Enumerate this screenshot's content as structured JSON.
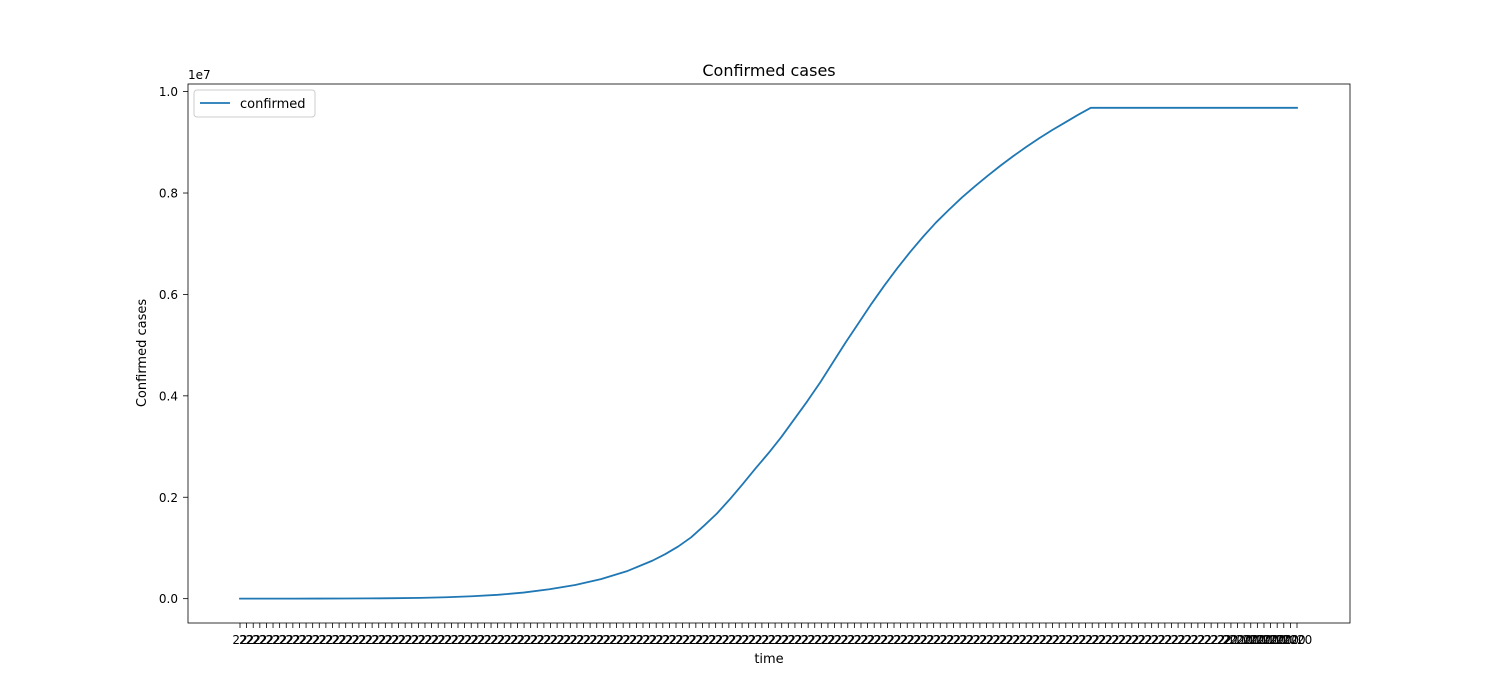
{
  "chart_data": {
    "type": "line",
    "title": "Confirmed cases",
    "xlabel": "time",
    "ylabel": "Confirmed cases",
    "y_offset_label": "1e7",
    "ylim": [
      -480000,
      10150000
    ],
    "y_ticks": [
      0,
      2000000,
      4000000,
      6000000,
      8000000,
      10000000
    ],
    "y_tick_labels": [
      "0.0",
      "0.2",
      "0.4",
      "0.6",
      "0.8",
      "1.0"
    ],
    "x_ticks_overplotted": true,
    "x_tick_label_sample": "22",
    "x_tick_label_last": "2020",
    "grid": false,
    "legend_position": "upper-left",
    "series": [
      {
        "name": "confirmed",
        "color": "#1f77b4",
        "x": [
          0,
          10,
          20,
          30,
          40,
          50,
          60,
          70,
          80,
          90,
          100,
          110,
          120,
          130,
          140,
          150,
          160,
          165,
          170,
          175,
          180,
          185,
          190,
          195,
          200,
          205,
          210,
          215,
          220,
          225,
          230,
          235,
          240,
          245,
          250,
          255,
          260,
          265,
          270,
          275,
          280,
          285,
          290,
          295,
          300,
          305,
          310,
          315,
          320,
          325,
          330,
          335,
          340,
          345,
          350,
          355,
          360,
          365,
          370,
          375,
          380,
          385,
          390,
          395,
          400,
          405,
          410
        ],
        "values": [
          555,
          900,
          1500,
          2300,
          3500,
          5500,
          9000,
          16000,
          28000,
          47000,
          76000,
          120000,
          185000,
          270000,
          385000,
          540000,
          750000,
          880000,
          1030000,
          1210000,
          1440000,
          1680000,
          1960000,
          2260000,
          2570000,
          2870000,
          3190000,
          3540000,
          3890000,
          4260000,
          4660000,
          5060000,
          5440000,
          5820000,
          6180000,
          6520000,
          6840000,
          7140000,
          7420000,
          7670000,
          7910000,
          8130000,
          8340000,
          8540000,
          8730000,
          8910000,
          9080000,
          9240000,
          9390000,
          9540000,
          9680000,
          9680000,
          9680000,
          9680000,
          9680000,
          9680000,
          9680000,
          9680000,
          9680000,
          9680000,
          9680000,
          9680000,
          9680000,
          9680000,
          9680000,
          9680000,
          9680000
        ]
      }
    ]
  }
}
